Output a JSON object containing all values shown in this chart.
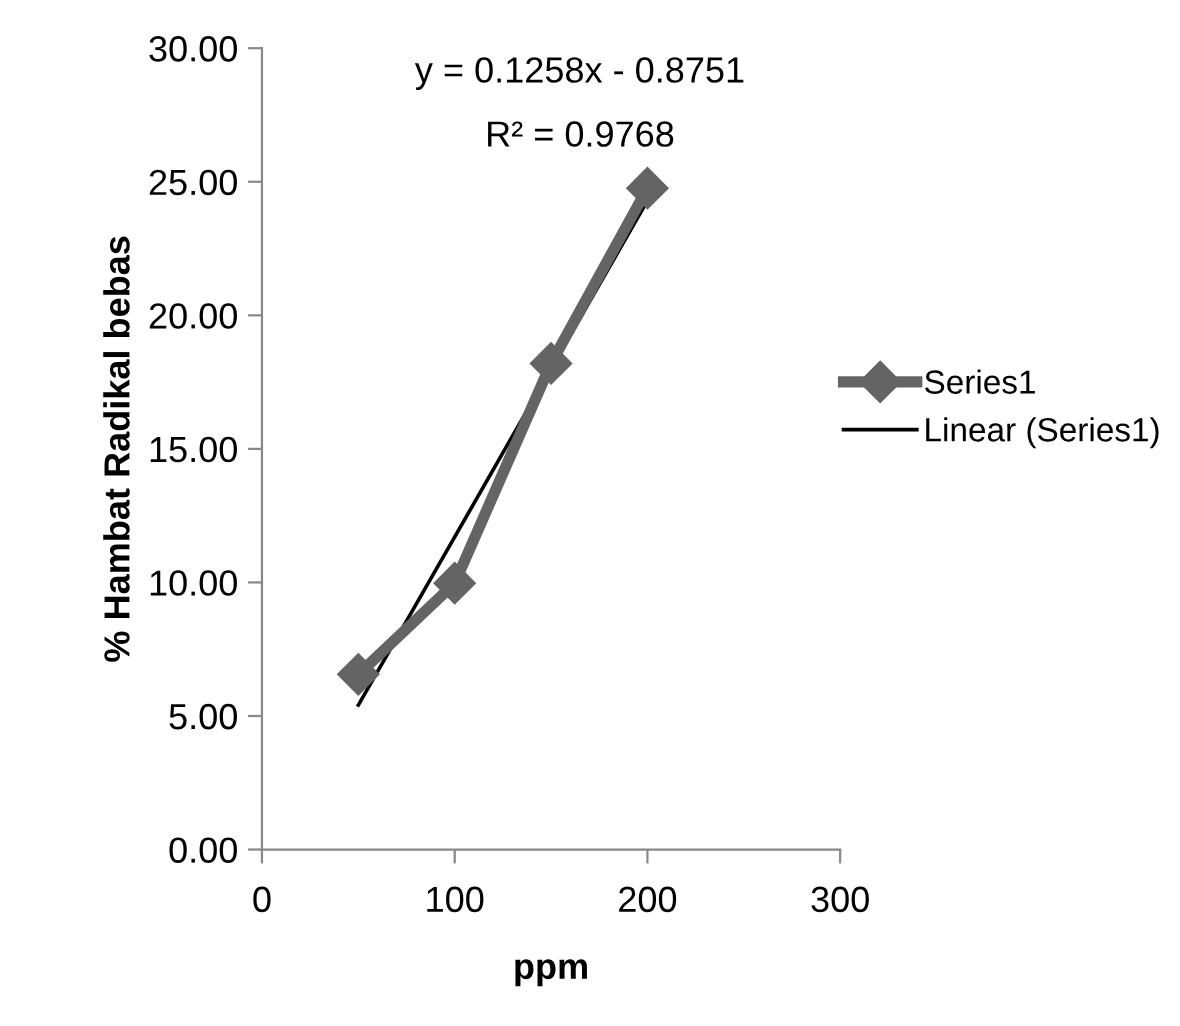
{
  "chart_data": {
    "type": "line",
    "xlabel": "ppm",
    "ylabel": "% Hambat Radikal bebas",
    "xlim": [
      0,
      300
    ],
    "xticks": [
      0,
      100,
      200,
      300
    ],
    "ylim": [
      0,
      30
    ],
    "yticks": [
      {
        "value": 0,
        "label": "0.00"
      },
      {
        "value": 5,
        "label": "5.00"
      },
      {
        "value": 10,
        "label": "10.00"
      },
      {
        "value": 15,
        "label": "15.00"
      },
      {
        "value": 20,
        "label": "20.00"
      },
      {
        "value": 25,
        "label": "25.00"
      },
      {
        "value": 30,
        "label": "30.00"
      }
    ],
    "series": [
      {
        "name": "Series1",
        "color": "#646464",
        "x": [
          50,
          100,
          150,
          200
        ],
        "values": [
          6.56,
          9.97,
          18.2,
          24.76
        ],
        "marker": "diamond",
        "line_style": "solid"
      },
      {
        "name": "Linear (Series1)",
        "color": "#000000",
        "x": [
          50,
          200
        ],
        "values": [
          5.41,
          24.29
        ],
        "marker": "none",
        "line_style": "solid"
      }
    ],
    "annotations": [
      "y = 0.1258x - 0.8751",
      "R² = 0.9768"
    ],
    "grid": false,
    "legend": "right"
  }
}
